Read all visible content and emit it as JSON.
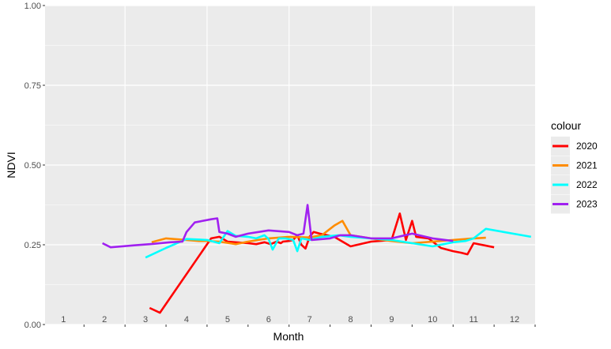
{
  "chart_data": {
    "type": "line",
    "xlabel": "Month",
    "ylabel": "NDVI",
    "xlim": [
      0.55,
      12.5
    ],
    "ylim": [
      0,
      1
    ],
    "y_ticks": [
      "0.00",
      "0.25",
      "0.50",
      "0.75",
      "1.00"
    ],
    "y_tick_values": [
      0,
      0.25,
      0.5,
      0.75,
      1
    ],
    "x_tick_labels": [
      "1",
      "2",
      "3",
      "4",
      "5",
      "6",
      "7",
      "8",
      "9",
      "10",
      "11",
      "12"
    ],
    "x_tick_values": [
      1,
      2,
      3,
      4,
      5,
      6,
      7,
      8,
      9,
      10,
      11,
      12
    ],
    "grid": true,
    "legend": {
      "title": "colour",
      "position": "right"
    },
    "colors": {
      "panel": "#EBEBEB",
      "grid": "#FFFFFF"
    },
    "series": [
      {
        "name": "2020",
        "color": "#FF0000",
        "x": [
          3.1,
          3.35,
          4.6,
          4.8,
          5.0,
          5.5,
          5.7,
          5.9,
          6.05,
          6.2,
          6.3,
          6.35,
          6.5,
          6.6,
          6.7,
          6.8,
          6.9,
          7.0,
          7.1,
          7.25,
          7.6,
          8.0,
          8.5,
          9.0,
          9.2,
          9.35,
          9.5,
          9.6,
          9.9,
          10.2,
          10.5,
          10.7,
          10.85,
          11.0,
          11.5
        ],
        "y": [
          0.052,
          0.037,
          0.27,
          0.275,
          0.26,
          0.255,
          0.252,
          0.258,
          0.252,
          0.26,
          0.255,
          0.26,
          0.262,
          0.265,
          0.28,
          0.25,
          0.238,
          0.275,
          0.29,
          0.285,
          0.275,
          0.245,
          0.26,
          0.265,
          0.348,
          0.265,
          0.325,
          0.275,
          0.27,
          0.24,
          0.23,
          0.225,
          0.22,
          0.255,
          0.242
        ]
      },
      {
        "name": "2021",
        "color": "#FF8C00",
        "x": [
          3.15,
          3.5,
          4.0,
          4.3,
          4.5,
          4.8,
          5.2,
          5.5,
          5.75,
          6.0,
          6.5,
          7.0,
          7.3,
          7.6,
          7.8,
          8.0,
          8.5,
          9.0,
          9.5,
          10.0,
          10.5,
          11.0,
          11.3
        ],
        "y": [
          0.258,
          0.27,
          0.265,
          0.262,
          0.262,
          0.26,
          0.252,
          0.26,
          0.265,
          0.27,
          0.275,
          0.273,
          0.28,
          0.31,
          0.325,
          0.28,
          0.27,
          0.262,
          0.255,
          0.26,
          0.265,
          0.27,
          0.272
        ]
      },
      {
        "name": "2022",
        "color": "#00FFFF",
        "x": [
          3.0,
          3.5,
          4.0,
          4.5,
          4.8,
          5.0,
          5.2,
          5.5,
          5.7,
          5.9,
          6.0,
          6.1,
          6.25,
          6.4,
          6.6,
          6.7,
          6.8,
          7.0,
          7.3,
          7.7,
          8.0,
          8.5,
          9.0,
          9.5,
          10.0,
          10.5,
          10.8,
          11.0,
          11.3,
          12.4
        ],
        "y": [
          0.21,
          0.24,
          0.268,
          0.265,
          0.255,
          0.293,
          0.278,
          0.275,
          0.27,
          0.28,
          0.268,
          0.235,
          0.27,
          0.27,
          0.265,
          0.23,
          0.27,
          0.265,
          0.275,
          0.28,
          0.275,
          0.27,
          0.265,
          0.255,
          0.245,
          0.258,
          0.262,
          0.27,
          0.3,
          0.275
        ]
      },
      {
        "name": "2023",
        "color": "#A020F0",
        "x": [
          1.95,
          2.15,
          2.7,
          3.2,
          3.6,
          3.9,
          4.0,
          4.2,
          4.6,
          4.75,
          4.8,
          5.0,
          5.2,
          5.5,
          6.0,
          6.5,
          6.7,
          6.85,
          6.95,
          7.05,
          7.5,
          7.75,
          8.0,
          8.5,
          9.0,
          9.5,
          10.0,
          10.5
        ],
        "y": [
          0.255,
          0.242,
          0.248,
          0.253,
          0.258,
          0.26,
          0.29,
          0.32,
          0.33,
          0.333,
          0.29,
          0.285,
          0.275,
          0.285,
          0.295,
          0.29,
          0.28,
          0.285,
          0.375,
          0.265,
          0.27,
          0.28,
          0.28,
          0.27,
          0.27,
          0.285,
          0.27,
          0.262
        ]
      }
    ]
  }
}
